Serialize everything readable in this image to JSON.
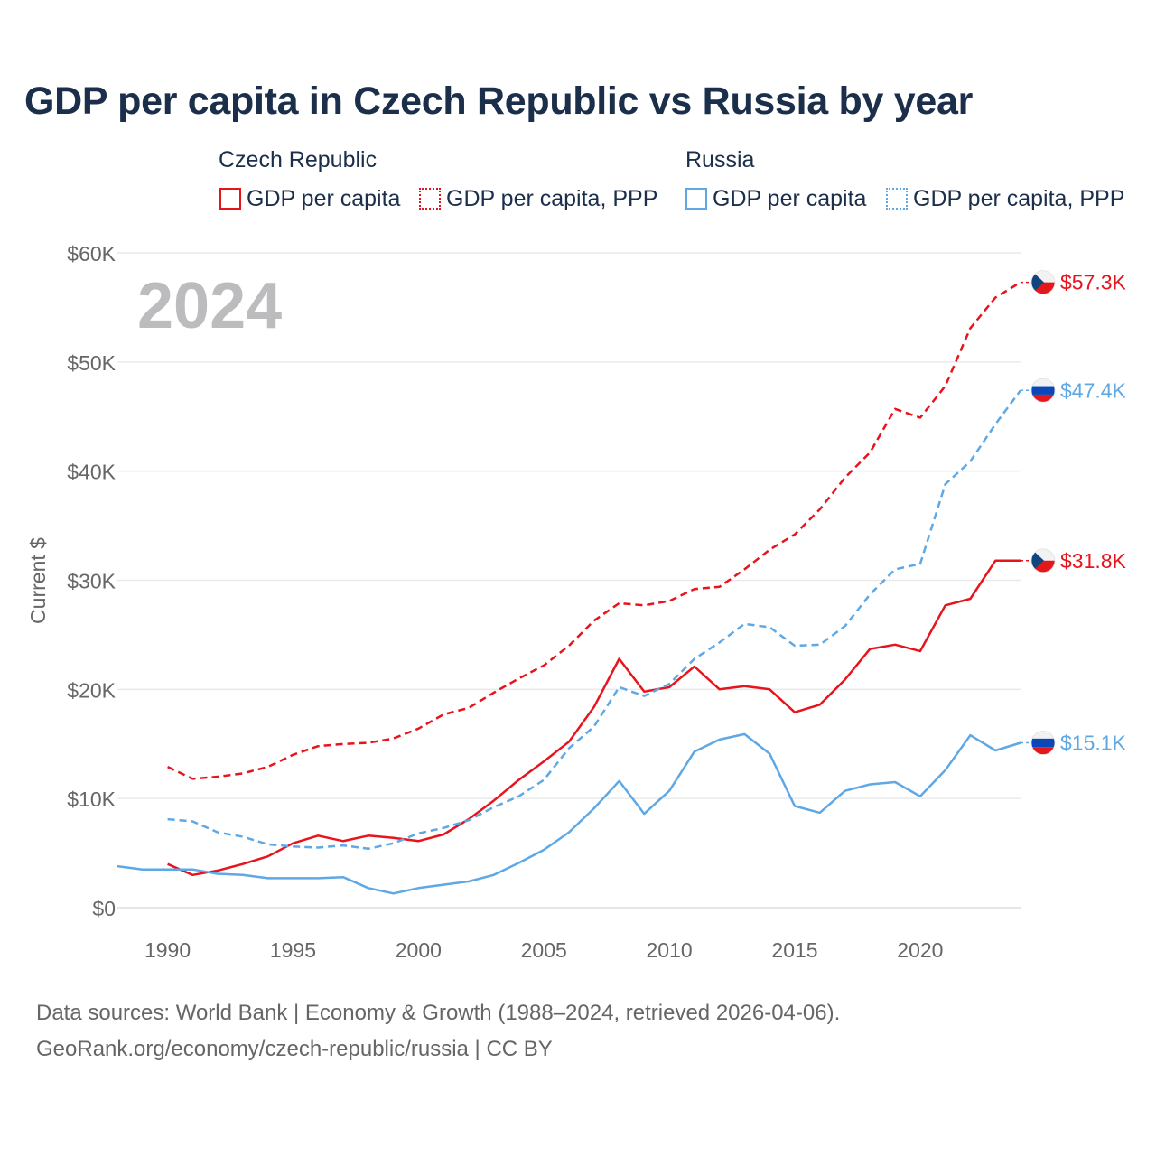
{
  "title": "GDP per capita in Czech Republic vs Russia by year",
  "year_watermark": "2024",
  "legend": {
    "groups": [
      {
        "country": "Czech Republic",
        "items": [
          "GDP per capita",
          "GDP per capita, PPP"
        ],
        "color": "#e8141d"
      },
      {
        "country": "Russia",
        "items": [
          "GDP per capita",
          "GDP per capita, PPP"
        ],
        "color": "#5ea8e6"
      }
    ]
  },
  "footer": {
    "line1": "Data sources: World Bank | Economy & Growth (1988–2024, retrieved 2026-04-06).",
    "line2": "GeoRank.org/economy/czech-republic/russia | CC BY"
  },
  "chart_data": {
    "type": "line",
    "title": "GDP per capita in Czech Republic vs Russia by year",
    "ylabel": "Current $",
    "xlabel": "",
    "xlim": [
      1988,
      2024
    ],
    "ylim": [
      0,
      60000
    ],
    "yticks": [
      0,
      10000,
      20000,
      30000,
      40000,
      50000,
      60000
    ],
    "ytick_labels": [
      "$0",
      "$10K",
      "$20K",
      "$30K",
      "$40K",
      "$50K",
      "$60K"
    ],
    "xticks": [
      1990,
      1995,
      2000,
      2005,
      2010,
      2015,
      2020
    ],
    "xtick_labels": [
      "1990",
      "1995",
      "2000",
      "2005",
      "2010",
      "2015",
      "2020"
    ],
    "grid": true,
    "series": [
      {
        "name": "Czech Republic — GDP per capita",
        "country": "Czech Republic",
        "style": "solid",
        "color": "#e8141d",
        "end_label": "$31.8K",
        "flag": "czech",
        "x": [
          1990,
          1991,
          1992,
          1993,
          1994,
          1995,
          1996,
          1997,
          1998,
          1999,
          2000,
          2001,
          2002,
          2003,
          2004,
          2005,
          2006,
          2007,
          2008,
          2009,
          2010,
          2011,
          2012,
          2013,
          2014,
          2015,
          2016,
          2017,
          2018,
          2019,
          2020,
          2021,
          2022,
          2023,
          2024
        ],
        "values": [
          4000,
          3000,
          3400,
          4000,
          4700,
          5900,
          6600,
          6100,
          6600,
          6400,
          6100,
          6700,
          8100,
          9800,
          11700,
          13400,
          15200,
          18400,
          22800,
          19800,
          20200,
          22100,
          20000,
          20300,
          20000,
          17900,
          18600,
          20900,
          23700,
          24100,
          23500,
          27700,
          28300,
          31800,
          31800
        ]
      },
      {
        "name": "Czech Republic — GDP per capita, PPP",
        "country": "Czech Republic",
        "style": "dashed",
        "color": "#e8141d",
        "end_label": "$57.3K",
        "flag": "czech",
        "x": [
          1990,
          1991,
          1992,
          1993,
          1994,
          1995,
          1996,
          1997,
          1998,
          1999,
          2000,
          2001,
          2002,
          2003,
          2004,
          2005,
          2006,
          2007,
          2008,
          2009,
          2010,
          2011,
          2012,
          2013,
          2014,
          2015,
          2016,
          2017,
          2018,
          2019,
          2020,
          2021,
          2022,
          2023,
          2024
        ],
        "values": [
          12900,
          11800,
          12000,
          12300,
          12900,
          14000,
          14800,
          15000,
          15100,
          15500,
          16400,
          17700,
          18300,
          19700,
          21000,
          22200,
          24000,
          26300,
          27900,
          27700,
          28100,
          29200,
          29400,
          31000,
          32800,
          34200,
          36500,
          39400,
          41700,
          45700,
          44900,
          47800,
          53100,
          55900,
          57300
        ]
      },
      {
        "name": "Russia — GDP per capita",
        "country": "Russia",
        "style": "solid",
        "color": "#5ea8e6",
        "end_label": "$15.1K",
        "flag": "russia",
        "x": [
          1988,
          1989,
          1990,
          1991,
          1992,
          1993,
          1994,
          1995,
          1996,
          1997,
          1998,
          1999,
          2000,
          2001,
          2002,
          2003,
          2004,
          2005,
          2006,
          2007,
          2008,
          2009,
          2010,
          2011,
          2012,
          2013,
          2014,
          2015,
          2016,
          2017,
          2018,
          2019,
          2020,
          2021,
          2022,
          2023,
          2024
        ],
        "values": [
          3800,
          3500,
          3500,
          3500,
          3100,
          3000,
          2700,
          2700,
          2700,
          2800,
          1800,
          1300,
          1800,
          2100,
          2400,
          3000,
          4100,
          5300,
          6900,
          9100,
          11600,
          8600,
          10700,
          14300,
          15400,
          15900,
          14100,
          9300,
          8700,
          10700,
          11300,
          11500,
          10200,
          12600,
          15800,
          14400,
          15100
        ]
      },
      {
        "name": "Russia — GDP per capita, PPP",
        "country": "Russia",
        "style": "dashed",
        "color": "#5ea8e6",
        "end_label": "$47.4K",
        "flag": "russia",
        "x": [
          1990,
          1991,
          1992,
          1993,
          1994,
          1995,
          1996,
          1997,
          1998,
          1999,
          2000,
          2001,
          2002,
          2003,
          2004,
          2005,
          2006,
          2007,
          2008,
          2009,
          2010,
          2011,
          2012,
          2013,
          2014,
          2015,
          2016,
          2017,
          2018,
          2019,
          2020,
          2021,
          2022,
          2023,
          2024
        ],
        "values": [
          8100,
          7900,
          6900,
          6500,
          5800,
          5600,
          5500,
          5700,
          5400,
          5900,
          6800,
          7300,
          8000,
          9200,
          10200,
          11700,
          14600,
          16600,
          20200,
          19400,
          20500,
          22800,
          24300,
          26000,
          25700,
          24000,
          24100,
          25800,
          28700,
          31000,
          31500,
          38800,
          40900,
          44300,
          47400
        ]
      }
    ]
  }
}
